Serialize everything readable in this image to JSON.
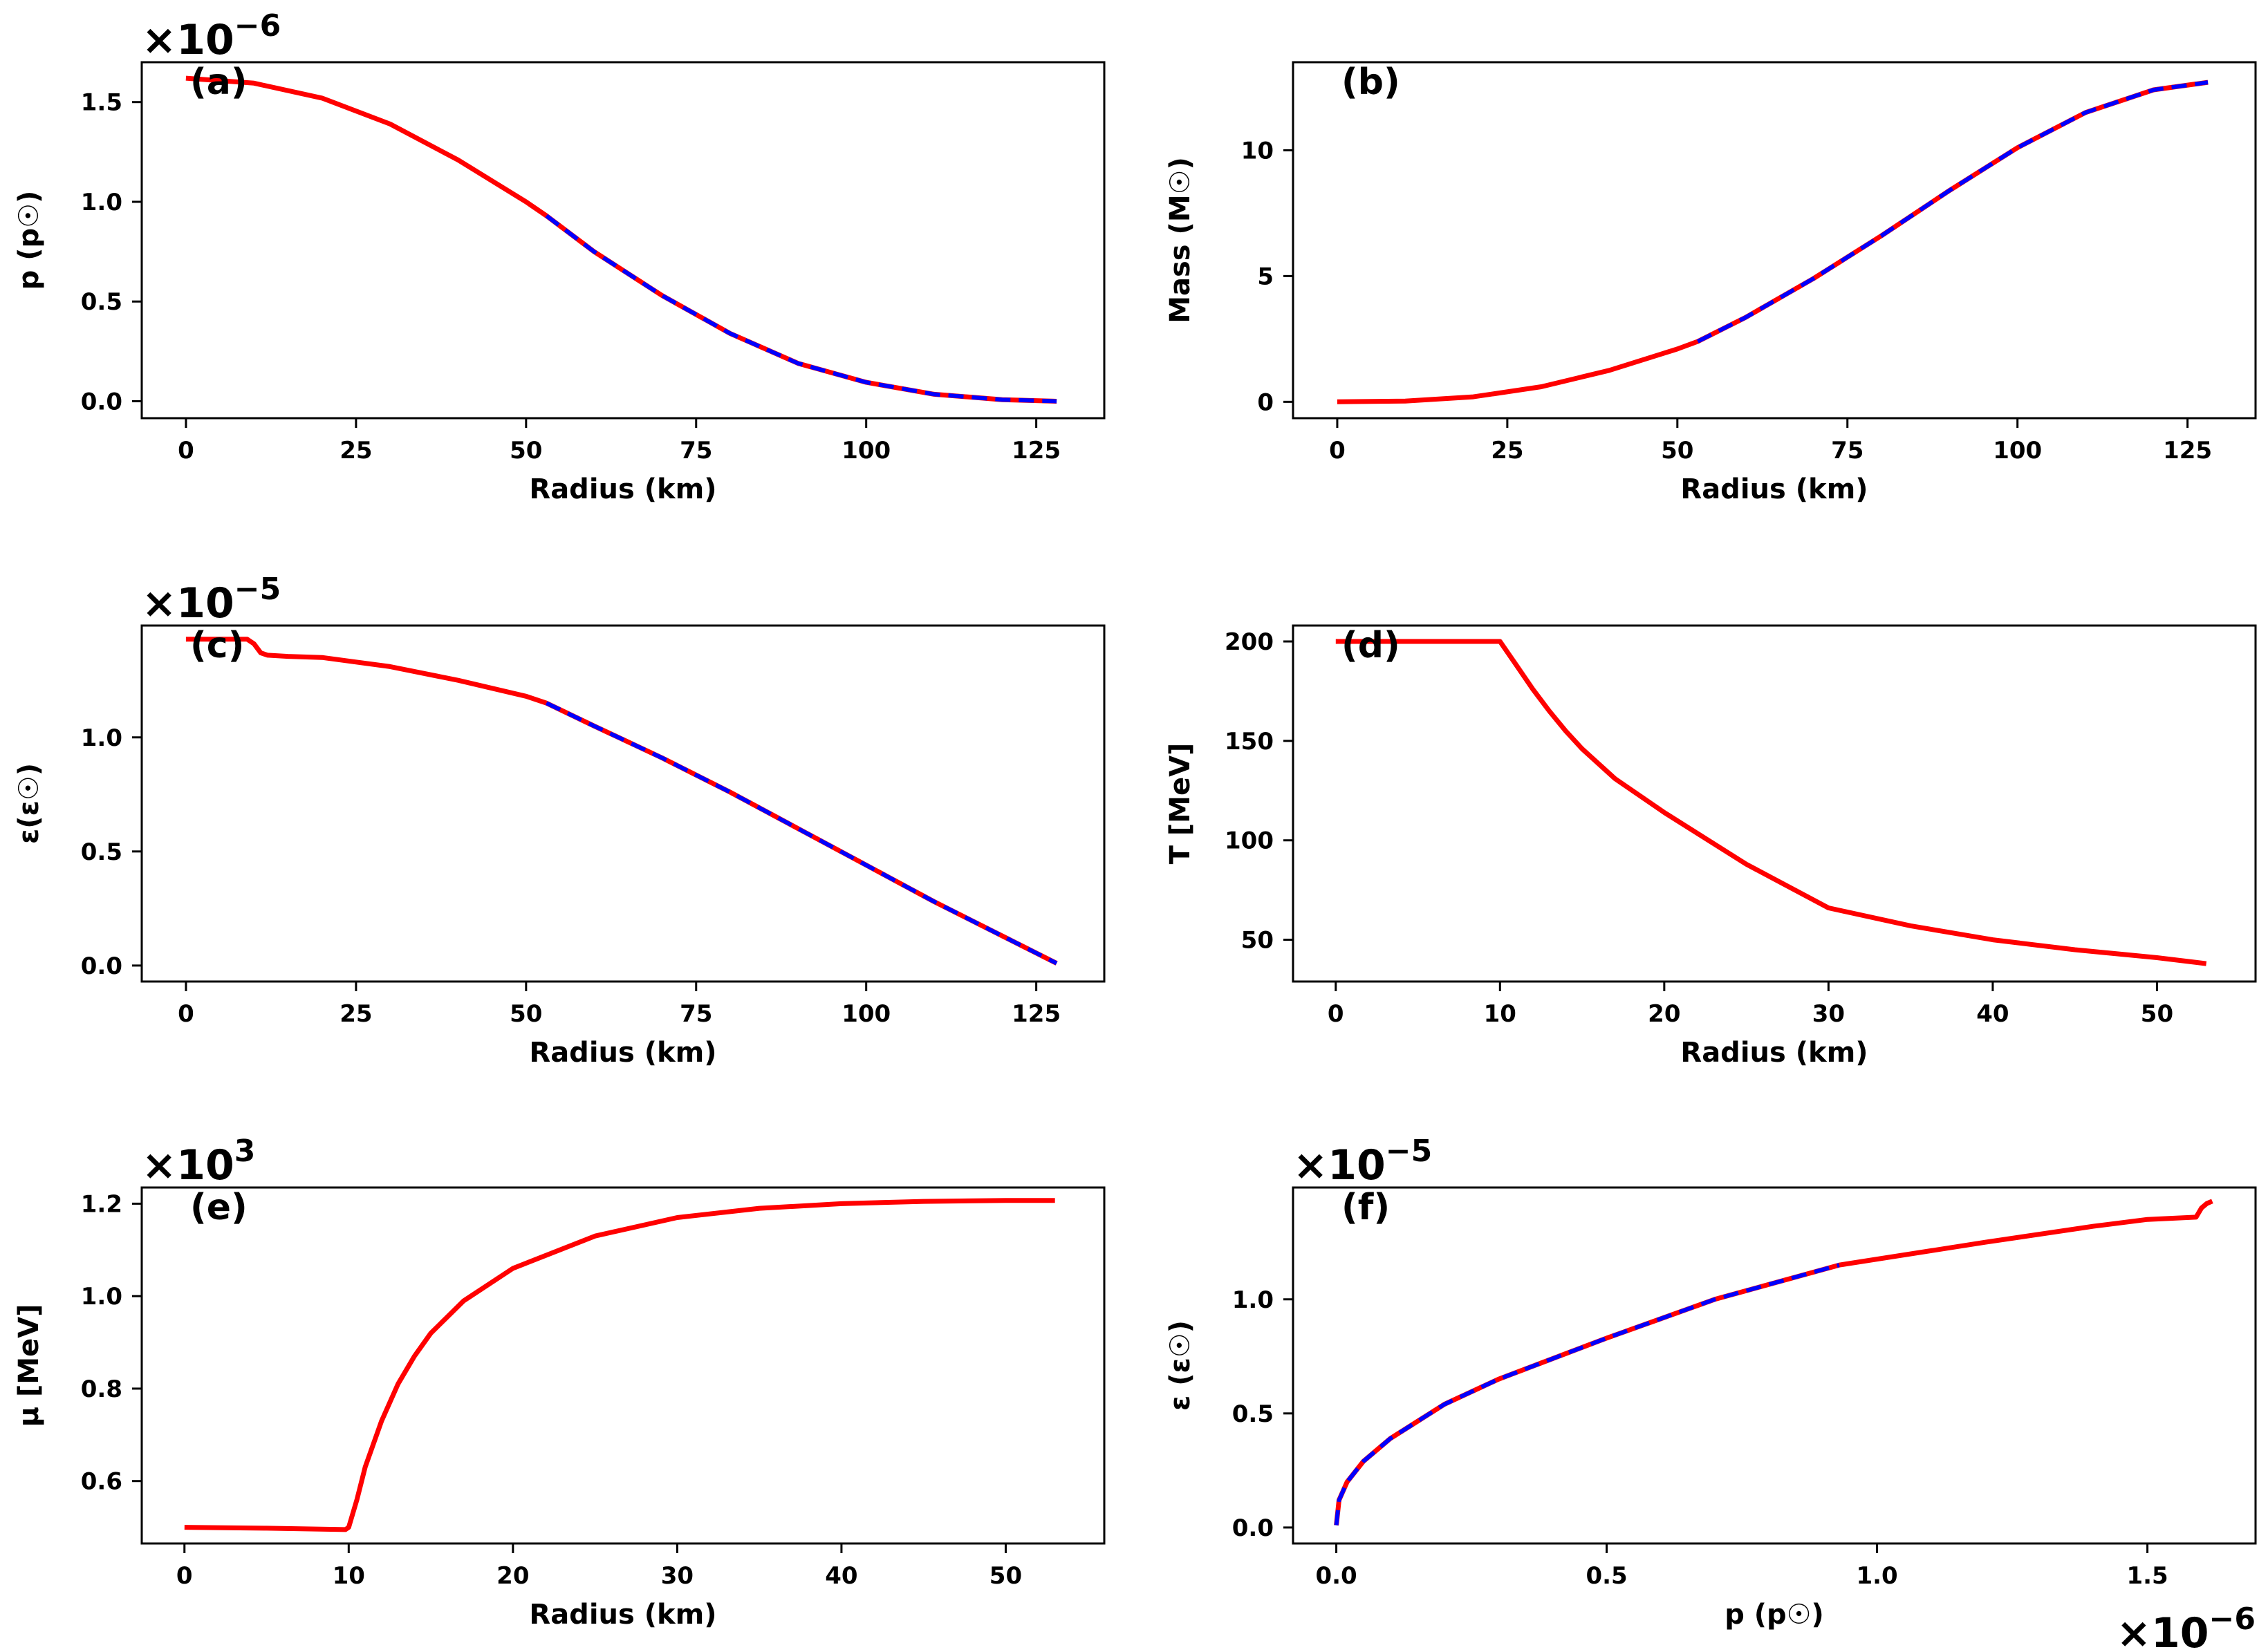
{
  "figure": {
    "colors": {
      "primary": "#ff0000",
      "secondary": "#0000ff",
      "axis": "#000000",
      "background": "#ffffff"
    }
  },
  "chart_data": [
    {
      "id": "a",
      "type": "line",
      "panel_label": "(a)",
      "xlabel": "Radius (km)",
      "ylabel": "p (p☉)",
      "xlim": [
        -6.5,
        135
      ],
      "ylim": [
        -0.085,
        1.7
      ],
      "xticks": [
        0,
        25,
        50,
        75,
        100,
        125
      ],
      "xtick_labels": [
        "0",
        "25",
        "50",
        "75",
        "100",
        "125"
      ],
      "yticks": [
        0,
        0.5,
        1.0,
        1.5
      ],
      "ytick_labels": [
        "0.0",
        "0.5",
        "1.0",
        "1.5"
      ],
      "offset_text": {
        "base": "×10",
        "exponent": "−6",
        "position": "top-left"
      },
      "series": [
        {
          "name": "red solid",
          "color": "#ff0000",
          "style": "solid",
          "x": [
            0,
            10,
            20,
            30,
            40,
            50,
            53,
            60,
            70,
            80,
            90,
            100,
            110,
            120,
            128
          ],
          "y": [
            1.62,
            1.595,
            1.52,
            1.39,
            1.21,
            1.0,
            0.93,
            0.75,
            0.53,
            0.34,
            0.19,
            0.095,
            0.035,
            0.008,
            0.0
          ]
        },
        {
          "name": "blue dashed",
          "color": "#0000ff",
          "style": "dashed",
          "x": [
            53,
            60,
            70,
            80,
            90,
            100,
            110,
            120,
            128
          ],
          "y": [
            0.93,
            0.75,
            0.53,
            0.34,
            0.19,
            0.095,
            0.035,
            0.008,
            0.0
          ]
        }
      ]
    },
    {
      "id": "b",
      "type": "line",
      "panel_label": "(b)",
      "xlabel": "Radius (km)",
      "ylabel": "Mass (M☉)",
      "xlim": [
        -6.5,
        135
      ],
      "ylim": [
        -0.65,
        13.5
      ],
      "xticks": [
        0,
        25,
        50,
        75,
        100,
        125
      ],
      "xtick_labels": [
        "0",
        "25",
        "50",
        "75",
        "100",
        "125"
      ],
      "yticks": [
        0,
        5,
        10
      ],
      "ytick_labels": [
        "0",
        "5",
        "10"
      ],
      "offset_text": null,
      "series": [
        {
          "name": "red solid",
          "color": "#ff0000",
          "style": "solid",
          "x": [
            0,
            10,
            20,
            30,
            40,
            50,
            53,
            60,
            70,
            80,
            90,
            100,
            110,
            120,
            128
          ],
          "y": [
            0,
            0.03,
            0.2,
            0.6,
            1.25,
            2.1,
            2.4,
            3.35,
            4.9,
            6.6,
            8.4,
            10.1,
            11.5,
            12.4,
            12.7
          ]
        },
        {
          "name": "blue dashed",
          "color": "#0000ff",
          "style": "dashed",
          "x": [
            53,
            60,
            70,
            80,
            90,
            100,
            110,
            120,
            128
          ],
          "y": [
            2.4,
            3.35,
            4.9,
            6.6,
            8.4,
            10.1,
            11.5,
            12.4,
            12.7
          ]
        }
      ]
    },
    {
      "id": "c",
      "type": "line",
      "panel_label": "(c)",
      "xlabel": "Radius (km)",
      "ylabel": "ε(ε☉)",
      "xlim": [
        -6.5,
        135
      ],
      "ylim": [
        -0.07,
        1.49
      ],
      "xticks": [
        0,
        25,
        50,
        75,
        100,
        125
      ],
      "xtick_labels": [
        "0",
        "25",
        "50",
        "75",
        "100",
        "125"
      ],
      "yticks": [
        0,
        0.5,
        1.0
      ],
      "ytick_labels": [
        "0.0",
        "0.5",
        "1.0"
      ],
      "offset_text": {
        "base": "×10",
        "exponent": "−5",
        "position": "top-left"
      },
      "series": [
        {
          "name": "red solid",
          "color": "#ff0000",
          "style": "solid",
          "x": [
            0,
            9,
            10,
            11,
            12,
            15,
            20,
            30,
            40,
            50,
            53,
            60,
            70,
            80,
            90,
            100,
            110,
            120,
            128
          ],
          "y": [
            1.43,
            1.43,
            1.41,
            1.37,
            1.36,
            1.355,
            1.35,
            1.31,
            1.25,
            1.18,
            1.15,
            1.05,
            0.91,
            0.76,
            0.6,
            0.44,
            0.28,
            0.13,
            0.01
          ]
        },
        {
          "name": "blue dashed",
          "color": "#0000ff",
          "style": "dashed",
          "x": [
            53,
            60,
            70,
            80,
            90,
            100,
            110,
            120,
            128
          ],
          "y": [
            1.15,
            1.05,
            0.91,
            0.76,
            0.6,
            0.44,
            0.28,
            0.13,
            0.01
          ]
        }
      ]
    },
    {
      "id": "d",
      "type": "line",
      "panel_label": "(d)",
      "xlabel": "Radius (km)",
      "ylabel": "T [MeV]",
      "xlim": [
        -2.6,
        56
      ],
      "ylim": [
        29,
        208
      ],
      "xticks": [
        0,
        10,
        20,
        30,
        40,
        50
      ],
      "xtick_labels": [
        "0",
        "10",
        "20",
        "30",
        "40",
        "50"
      ],
      "yticks": [
        50,
        100,
        150,
        200
      ],
      "ytick_labels": [
        "50",
        "100",
        "150",
        "200"
      ],
      "offset_text": null,
      "series": [
        {
          "name": "red solid",
          "color": "#ff0000",
          "style": "solid",
          "x": [
            0,
            10,
            11,
            12,
            13,
            14,
            15,
            17,
            20,
            25,
            30,
            35,
            40,
            45,
            50,
            53
          ],
          "y": [
            200,
            200,
            188,
            176,
            165,
            155,
            146,
            131,
            114,
            88,
            66,
            57,
            50,
            45,
            41,
            38
          ]
        }
      ]
    },
    {
      "id": "e",
      "type": "line",
      "panel_label": "(e)",
      "xlabel": "Radius (km)",
      "ylabel": "μ [MeV]",
      "xlim": [
        -2.6,
        56
      ],
      "ylim": [
        0.465,
        1.235
      ],
      "xticks": [
        0,
        10,
        20,
        30,
        40,
        50
      ],
      "xtick_labels": [
        "0",
        "10",
        "20",
        "30",
        "40",
        "50"
      ],
      "yticks": [
        0.6,
        0.8,
        1.0,
        1.2
      ],
      "ytick_labels": [
        "0.6",
        "0.8",
        "1.0",
        "1.2"
      ],
      "offset_text": {
        "base": "×10",
        "exponent": "3",
        "position": "top-left"
      },
      "series": [
        {
          "name": "red solid",
          "color": "#ff0000",
          "style": "solid",
          "x": [
            0,
            5,
            9.8,
            10,
            10.5,
            11,
            12,
            13,
            14,
            15,
            17,
            20,
            25,
            30,
            35,
            40,
            45,
            50,
            53
          ],
          "y": [
            0.5,
            0.498,
            0.495,
            0.5,
            0.56,
            0.63,
            0.73,
            0.81,
            0.87,
            0.92,
            0.99,
            1.06,
            1.13,
            1.17,
            1.19,
            1.2,
            1.205,
            1.207,
            1.207
          ]
        }
      ]
    },
    {
      "id": "f",
      "type": "line",
      "panel_label": "(f)",
      "xlabel": "p (p☉)",
      "ylabel": "ε (ε☉)",
      "xlim": [
        -0.08,
        1.7
      ],
      "ylim": [
        -0.07,
        1.49
      ],
      "xticks": [
        0,
        0.5,
        1.0,
        1.5
      ],
      "xtick_labels": [
        "0.0",
        "0.5",
        "1.0",
        "1.5"
      ],
      "yticks": [
        0,
        0.5,
        1.0
      ],
      "ytick_labels": [
        "0.0",
        "0.5",
        "1.0"
      ],
      "offset_text": {
        "base": "×10",
        "exponent": "−5",
        "position": "top-left"
      },
      "x_offset_text": {
        "base": "×10",
        "exponent": "−6",
        "position": "bottom-right"
      },
      "series": [
        {
          "name": "red solid",
          "color": "#ff0000",
          "style": "solid",
          "x": [
            0,
            0.005,
            0.02,
            0.05,
            0.1,
            0.2,
            0.3,
            0.5,
            0.7,
            0.93,
            1.2,
            1.4,
            1.5,
            1.59,
            1.6,
            1.61,
            1.62
          ],
          "y": [
            0.01,
            0.12,
            0.2,
            0.29,
            0.39,
            0.54,
            0.65,
            0.83,
            1.0,
            1.15,
            1.25,
            1.32,
            1.35,
            1.36,
            1.4,
            1.42,
            1.43
          ]
        },
        {
          "name": "blue dashed",
          "color": "#0000ff",
          "style": "dashed",
          "x": [
            0,
            0.005,
            0.02,
            0.05,
            0.1,
            0.2,
            0.3,
            0.5,
            0.7,
            0.93
          ],
          "y": [
            0.01,
            0.12,
            0.2,
            0.29,
            0.39,
            0.54,
            0.65,
            0.83,
            1.0,
            1.15
          ]
        }
      ]
    }
  ]
}
